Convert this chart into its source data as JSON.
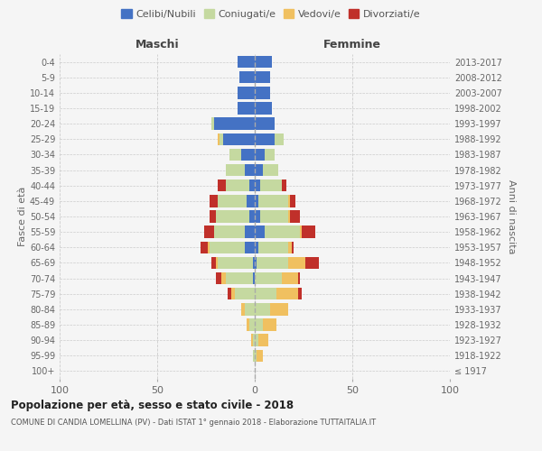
{
  "age_groups": [
    "100+",
    "95-99",
    "90-94",
    "85-89",
    "80-84",
    "75-79",
    "70-74",
    "65-69",
    "60-64",
    "55-59",
    "50-54",
    "45-49",
    "40-44",
    "35-39",
    "30-34",
    "25-29",
    "20-24",
    "15-19",
    "10-14",
    "5-9",
    "0-4"
  ],
  "birth_years": [
    "≤ 1917",
    "1918-1922",
    "1923-1927",
    "1928-1932",
    "1933-1937",
    "1938-1942",
    "1943-1947",
    "1948-1952",
    "1953-1957",
    "1958-1962",
    "1963-1967",
    "1968-1972",
    "1973-1977",
    "1978-1982",
    "1983-1987",
    "1988-1992",
    "1993-1997",
    "1998-2002",
    "2003-2007",
    "2008-2012",
    "2013-2017"
  ],
  "maschi": {
    "celibi": [
      0,
      0,
      0,
      0,
      0,
      0,
      1,
      1,
      5,
      5,
      3,
      4,
      3,
      5,
      7,
      16,
      21,
      9,
      9,
      8,
      9
    ],
    "coniugati": [
      0,
      1,
      1,
      3,
      5,
      10,
      14,
      18,
      18,
      16,
      17,
      15,
      12,
      10,
      6,
      2,
      1,
      0,
      0,
      0,
      0
    ],
    "vedovi": [
      0,
      0,
      1,
      1,
      2,
      2,
      2,
      1,
      1,
      0,
      0,
      0,
      0,
      0,
      0,
      1,
      0,
      0,
      0,
      0,
      0
    ],
    "divorziati": [
      0,
      0,
      0,
      0,
      0,
      2,
      3,
      2,
      4,
      5,
      3,
      4,
      4,
      0,
      0,
      0,
      0,
      0,
      0,
      0,
      0
    ]
  },
  "femmine": {
    "nubili": [
      0,
      0,
      0,
      0,
      0,
      0,
      0,
      1,
      2,
      5,
      3,
      2,
      3,
      4,
      5,
      10,
      10,
      9,
      8,
      8,
      9
    ],
    "coniugate": [
      0,
      1,
      2,
      4,
      8,
      11,
      14,
      16,
      15,
      18,
      14,
      15,
      11,
      8,
      5,
      5,
      0,
      0,
      0,
      0,
      0
    ],
    "vedove": [
      0,
      3,
      5,
      7,
      9,
      11,
      8,
      9,
      2,
      1,
      1,
      1,
      0,
      0,
      0,
      0,
      0,
      0,
      0,
      0,
      0
    ],
    "divorziate": [
      0,
      0,
      0,
      0,
      0,
      2,
      1,
      7,
      1,
      7,
      5,
      3,
      2,
      0,
      0,
      0,
      0,
      0,
      0,
      0,
      0
    ]
  },
  "colors": {
    "celibi_nubili": "#4472c4",
    "coniugati": "#c5d9a0",
    "vedovi": "#f0c060",
    "divorziati": "#c0302a"
  },
  "title": "Popolazione per età, sesso e stato civile - 2018",
  "subtitle": "COMUNE DI CANDIA LOMELLINA (PV) - Dati ISTAT 1° gennaio 2018 - Elaborazione TUTTAITALIA.IT",
  "ylabel_left": "Fasce di età",
  "ylabel_right": "Anni di nascita",
  "xlabel_left": "Maschi",
  "xlabel_right": "Femmine",
  "xlim": 100,
  "background_color": "#f5f5f5",
  "legend_labels": [
    "Celibi/Nubili",
    "Coniugati/e",
    "Vedovi/e",
    "Divorziati/e"
  ]
}
